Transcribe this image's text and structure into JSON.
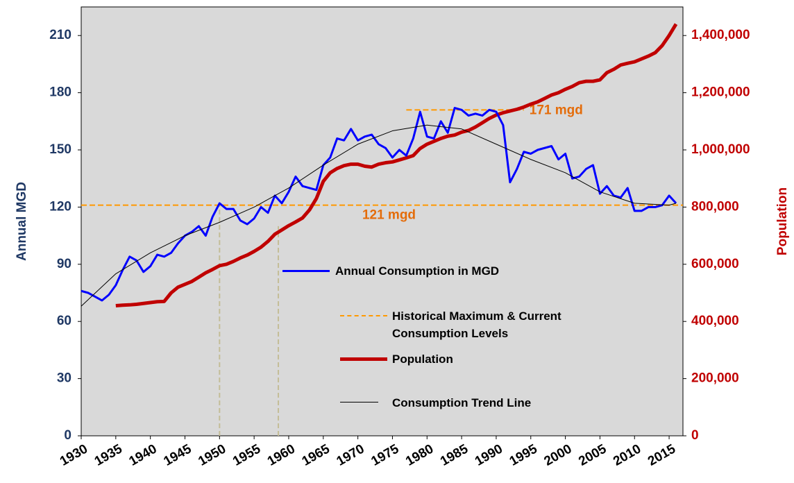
{
  "chart_data": {
    "type": "line",
    "xlim": [
      1930,
      2017
    ],
    "xticks": [
      1930,
      1935,
      1940,
      1945,
      1950,
      1955,
      1960,
      1965,
      1970,
      1975,
      1980,
      1985,
      1990,
      1995,
      2000,
      2005,
      2010,
      2015
    ],
    "ylim": [
      0,
      225
    ],
    "yticks": [
      0,
      30,
      60,
      90,
      120,
      150,
      180,
      210
    ],
    "y2lim": [
      0,
      1500000
    ],
    "y2ticks": [
      0,
      {
        "value": 200000,
        "label": "200,000"
      },
      {
        "value": 400000,
        "label": "400,000"
      },
      {
        "value": 600000,
        "label": "600,000"
      },
      {
        "value": 800000,
        "label": "800,000"
      },
      {
        "value": 1000000,
        "label": "1,000,000"
      },
      {
        "value": 1200000,
        "label": "1,200,000"
      },
      {
        "value": 1400000,
        "label": "1,400,000"
      }
    ],
    "ylabel": "Annual MGD",
    "y2label": "Population",
    "series": [
      {
        "name": "Annual Consumption in MGD",
        "color": "#0000ff",
        "axis": "y",
        "x": [
          1930,
          1931,
          1932,
          1933,
          1934,
          1935,
          1936,
          1937,
          1938,
          1939,
          1940,
          1941,
          1942,
          1943,
          1944,
          1945,
          1946,
          1947,
          1948,
          1949,
          1950,
          1951,
          1952,
          1953,
          1954,
          1955,
          1956,
          1957,
          1958,
          1959,
          1960,
          1961,
          1962,
          1963,
          1964,
          1965,
          1966,
          1967,
          1968,
          1969,
          1970,
          1971,
          1972,
          1973,
          1974,
          1975,
          1976,
          1977,
          1978,
          1979,
          1980,
          1981,
          1982,
          1983,
          1984,
          1985,
          1986,
          1987,
          1988,
          1989,
          1990,
          1991,
          1992,
          1993,
          1994,
          1995,
          1996,
          1997,
          1998,
          1999,
          2000,
          2001,
          2002,
          2003,
          2004,
          2005,
          2006,
          2007,
          2008,
          2009,
          2010,
          2011,
          2012,
          2013,
          2014,
          2015,
          2016
        ],
        "values": [
          76,
          75,
          73,
          71,
          74,
          79,
          87,
          94,
          92,
          86,
          89,
          95,
          94,
          96,
          101,
          105,
          107,
          110,
          105,
          115,
          122,
          119,
          119,
          113,
          111,
          114,
          120,
          117,
          126,
          122,
          128,
          136,
          131,
          130,
          129,
          142,
          146,
          156,
          155,
          161,
          155,
          157,
          158,
          153,
          151,
          146,
          150,
          147,
          156,
          170,
          157,
          156,
          165,
          159,
          172,
          171,
          168,
          169,
          168,
          171,
          170,
          163,
          133,
          140,
          149,
          148,
          150,
          151,
          152,
          145,
          148,
          135,
          136,
          140,
          142,
          127,
          131,
          126,
          125,
          130,
          118,
          118,
          120,
          120,
          121,
          126,
          122
        ]
      },
      {
        "name": "Population",
        "color": "#c00000",
        "axis": "y2",
        "x": [
          1935,
          1936,
          1937,
          1938,
          1939,
          1940,
          1941,
          1942,
          1943,
          1944,
          1945,
          1946,
          1947,
          1948,
          1949,
          1950,
          1951,
          1952,
          1953,
          1954,
          1955,
          1956,
          1957,
          1958,
          1959,
          1960,
          1961,
          1962,
          1963,
          1964,
          1965,
          1966,
          1967,
          1968,
          1969,
          1970,
          1971,
          1972,
          1973,
          1974,
          1975,
          1976,
          1977,
          1978,
          1979,
          1980,
          1981,
          1982,
          1983,
          1984,
          1985,
          1986,
          1987,
          1988,
          1989,
          1990,
          1991,
          1992,
          1993,
          1994,
          1995,
          1996,
          1997,
          1998,
          1999,
          2000,
          2001,
          2002,
          2003,
          2004,
          2005,
          2006,
          2007,
          2008,
          2009,
          2010,
          2011,
          2012,
          2013,
          2014,
          2015,
          2016
        ],
        "values": [
          455000,
          457000,
          458000,
          460000,
          463000,
          466000,
          469000,
          470000,
          500000,
          520000,
          530000,
          540000,
          555000,
          570000,
          582000,
          595000,
          600000,
          610000,
          622000,
          632000,
          645000,
          660000,
          680000,
          705000,
          720000,
          735000,
          748000,
          762000,
          790000,
          830000,
          890000,
          920000,
          935000,
          945000,
          950000,
          950000,
          943000,
          940000,
          950000,
          955000,
          958000,
          965000,
          972000,
          980000,
          1005000,
          1020000,
          1030000,
          1040000,
          1048000,
          1052000,
          1062000,
          1068000,
          1080000,
          1095000,
          1110000,
          1122000,
          1130000,
          1136000,
          1142000,
          1150000,
          1160000,
          1168000,
          1180000,
          1192000,
          1200000,
          1212000,
          1222000,
          1235000,
          1240000,
          1240000,
          1245000,
          1270000,
          1282000,
          1297000,
          1303000,
          1308000,
          1318000,
          1328000,
          1340000,
          1365000,
          1400000,
          1440000
        ]
      },
      {
        "name": "Consumption Trend Line",
        "color": "#000000",
        "axis": "y",
        "x": [
          1930,
          1935,
          1940,
          1945,
          1950,
          1955,
          1960,
          1965,
          1970,
          1975,
          1980,
          1985,
          1990,
          1995,
          2000,
          2005,
          2010,
          2015,
          2016
        ],
        "values": [
          68,
          85,
          96,
          105,
          112,
          120,
          130,
          142,
          153,
          160,
          163,
          161,
          153,
          145,
          138,
          128,
          122,
          121,
          122
        ]
      }
    ],
    "reference_lines": {
      "name": "Historical Maximum & Current Consumption Levels",
      "color": "#ff9900",
      "lines": [
        {
          "value": 171,
          "label": "171 mgd",
          "x": [
            1977,
            1994
          ]
        },
        {
          "value": 121,
          "label": "121 mgd"
        }
      ]
    },
    "vlines": {
      "color": "#c4bd97",
      "lines": [
        {
          "x": 1950,
          "y": 121
        },
        {
          "x": 1958.5,
          "y": 110
        }
      ]
    }
  }
}
